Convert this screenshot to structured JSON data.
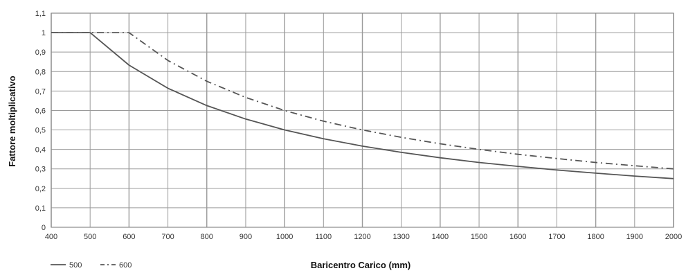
{
  "chart_data": {
    "type": "line",
    "xlabel": "Baricentro Carico (mm)",
    "ylabel": "Fattore moltiplicativo",
    "xlim": [
      400,
      2000
    ],
    "ylim": [
      0,
      1.1
    ],
    "x_ticks": [
      "400",
      "500",
      "600",
      "700",
      "800",
      "900",
      "1000",
      "1100",
      "1200",
      "1300",
      "1400",
      "1500",
      "1600",
      "1700",
      "1800",
      "1900",
      "2000"
    ],
    "y_ticks": [
      "0",
      "0,1",
      "0,2",
      "0,3",
      "0,4",
      "0,5",
      "0,6",
      "0,7",
      "0,8",
      "0,9",
      "1",
      "1,1"
    ],
    "grid": true,
    "legend_position": "bottom-left",
    "series": [
      {
        "name": "500",
        "style": "solid",
        "color": "#555555",
        "x": [
          400,
          500,
          600,
          700,
          800,
          900,
          1000,
          1100,
          1200,
          1300,
          1400,
          1500,
          1600,
          1700,
          1800,
          1900,
          2000
        ],
        "values": [
          1,
          1,
          0.833,
          0.714,
          0.625,
          0.556,
          0.5,
          0.455,
          0.417,
          0.385,
          0.357,
          0.333,
          0.313,
          0.294,
          0.278,
          0.263,
          0.25
        ]
      },
      {
        "name": "600",
        "style": "dashdot",
        "color": "#555555",
        "x": [
          400,
          500,
          600,
          700,
          800,
          900,
          1000,
          1100,
          1200,
          1300,
          1400,
          1500,
          1600,
          1700,
          1800,
          1900,
          2000
        ],
        "values": [
          1,
          1,
          1,
          0.857,
          0.75,
          0.667,
          0.6,
          0.545,
          0.5,
          0.462,
          0.429,
          0.4,
          0.375,
          0.353,
          0.333,
          0.316,
          0.3
        ]
      }
    ]
  }
}
